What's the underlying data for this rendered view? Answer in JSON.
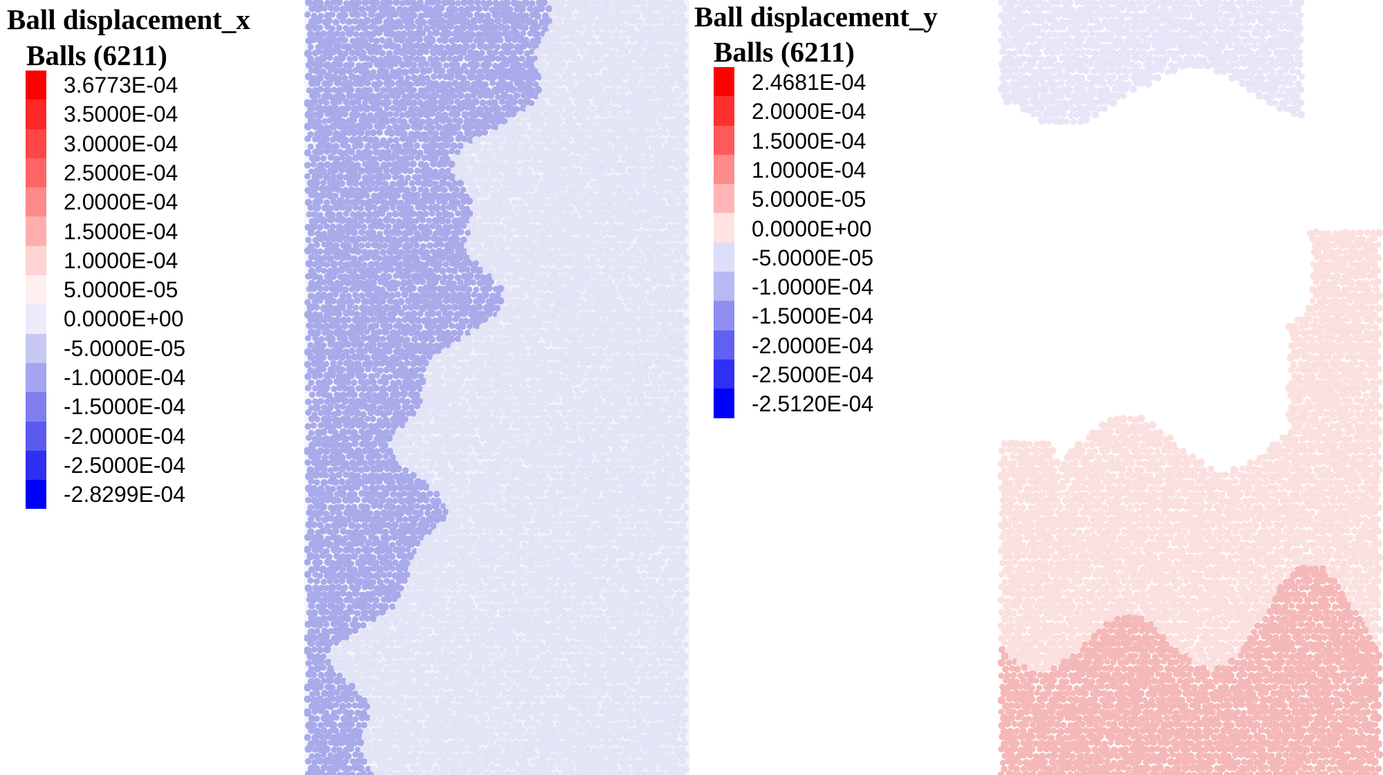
{
  "chart_data": [
    {
      "type": "heatmap",
      "title": "Ball displacement_x",
      "subtitle": "Balls (6211)",
      "legend_position": "left",
      "legend_ticks": [
        "3.6773E-04",
        "3.5000E-04",
        "3.0000E-04",
        "2.5000E-04",
        "2.0000E-04",
        "1.5000E-04",
        "1.0000E-04",
        "5.0000E-05",
        "0.0000E+00",
        "-5.0000E-05",
        "-1.0000E-04",
        "-1.5000E-04",
        "-2.0000E-04",
        "-2.5000E-04",
        "-2.8299E-04"
      ],
      "value_max": 0.00036773,
      "value_min": -0.00028299,
      "regions": [
        {
          "area": "left",
          "approx_value": -5e-05
        },
        {
          "area": "right",
          "approx_value": 0.0
        }
      ],
      "colors": [
        "#ff0000",
        "#ff2828",
        "#ff4545",
        "#ff6565",
        "#ff8a8a",
        "#ffaeae",
        "#ffd4d4",
        "#fff0f0",
        "#ebebfb",
        "#c8c8f4",
        "#a5a5ef",
        "#7e7eef",
        "#5a5af0",
        "#2f2ff3",
        "#0000ff"
      ],
      "particle_colors": {
        "left": "#a9aaea",
        "right": "#e3e4f5"
      }
    },
    {
      "type": "heatmap",
      "title": "Ball displacement_y",
      "subtitle": "Balls (6211)",
      "legend_position": "left",
      "legend_ticks": [
        "2.4681E-04",
        "2.0000E-04",
        "1.5000E-04",
        "1.0000E-04",
        "5.0000E-05",
        "0.0000E+00",
        "-5.0000E-05",
        "-1.0000E-04",
        "-1.5000E-04",
        "-2.0000E-04",
        "-2.5000E-04",
        "-2.5120E-04"
      ],
      "value_max": 0.00024681,
      "value_min": -0.0002512,
      "regions": [
        {
          "area": "top",
          "approx_value": -5e-06
        },
        {
          "area": "middle",
          "approx_value": 0.0
        },
        {
          "area": "bottom",
          "approx_value": 5e-05
        }
      ],
      "colors": [
        "#ff0000",
        "#ff3030",
        "#ff5a5a",
        "#ff8a8a",
        "#ffb5b5",
        "#ffe2e2",
        "#dedefa",
        "#b8b8f5",
        "#8f8ff2",
        "#6060f2",
        "#2f2ff5",
        "#0000ff"
      ],
      "particle_colors": {
        "top": "#e6e6f8",
        "bottom_light": "#fbe0e0",
        "bottom_dark": "#f5b8b8"
      }
    }
  ]
}
